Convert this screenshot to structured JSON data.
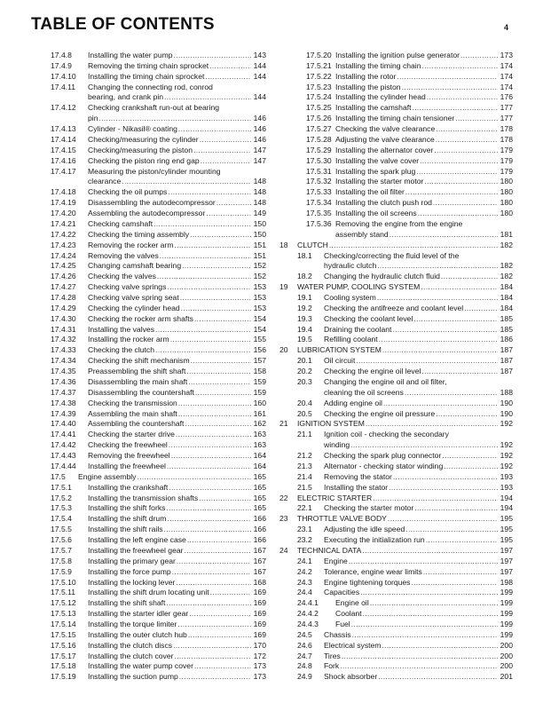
{
  "header": {
    "title": "TABLE OF CONTENTS",
    "page_number": "4"
  },
  "columns": [
    [
      {
        "lv": "a",
        "num": "17.4.8",
        "title": [
          "Installing the water pump"
        ],
        "page": "143"
      },
      {
        "lv": "a",
        "num": "17.4.9",
        "title": [
          "Removing the timing chain sprocket"
        ],
        "page": "144"
      },
      {
        "lv": "a",
        "num": "17.4.10",
        "title": [
          "Installing the timing chain sprocket"
        ],
        "page": "144"
      },
      {
        "lv": "a",
        "num": "17.4.11",
        "title": [
          "Changing the connecting rod, conrod",
          "bearing, and crank pin"
        ],
        "page": "144"
      },
      {
        "lv": "a",
        "num": "17.4.12",
        "title": [
          "Checking crankshaft run-out at bearing",
          "pin"
        ],
        "page": "146"
      },
      {
        "lv": "a",
        "num": "17.4.13",
        "title": [
          "Cylinder - Nikasil® coating"
        ],
        "page": "146"
      },
      {
        "lv": "a",
        "num": "17.4.14",
        "title": [
          "Checking/measuring the cylinder"
        ],
        "page": "146"
      },
      {
        "lv": "a",
        "num": "17.4.15",
        "title": [
          "Checking/measuring the piston"
        ],
        "page": "147"
      },
      {
        "lv": "a",
        "num": "17.4.16",
        "title": [
          "Checking the piston ring end gap"
        ],
        "page": "147"
      },
      {
        "lv": "a",
        "num": "17.4.17",
        "title": [
          "Measuring the piston/cylinder mounting",
          "clearance"
        ],
        "page": "148"
      },
      {
        "lv": "a",
        "num": "17.4.18",
        "title": [
          "Checking the oil pumps"
        ],
        "page": "148"
      },
      {
        "lv": "a",
        "num": "17.4.19",
        "title": [
          "Disassembling the autodecompressor"
        ],
        "page": "148"
      },
      {
        "lv": "a",
        "num": "17.4.20",
        "title": [
          "Assembling the autodecompressor"
        ],
        "page": "149"
      },
      {
        "lv": "a",
        "num": "17.4.21",
        "title": [
          "Checking camshaft"
        ],
        "page": "150"
      },
      {
        "lv": "a",
        "num": "17.4.22",
        "title": [
          "Checking the timing assembly"
        ],
        "page": "150"
      },
      {
        "lv": "a",
        "num": "17.4.23",
        "title": [
          "Removing the rocker arm"
        ],
        "page": "151"
      },
      {
        "lv": "a",
        "num": "17.4.24",
        "title": [
          "Removing the valves"
        ],
        "page": "151"
      },
      {
        "lv": "a",
        "num": "17.4.25",
        "title": [
          "Changing camshaft bearing"
        ],
        "page": "152"
      },
      {
        "lv": "a",
        "num": "17.4.26",
        "title": [
          "Checking the valves"
        ],
        "page": "152"
      },
      {
        "lv": "a",
        "num": "17.4.27",
        "title": [
          "Checking valve springs"
        ],
        "page": "153"
      },
      {
        "lv": "a",
        "num": "17.4.28",
        "title": [
          "Checking valve spring seat"
        ],
        "page": "153"
      },
      {
        "lv": "a",
        "num": "17.4.29",
        "title": [
          "Checking the cylinder head"
        ],
        "page": "153"
      },
      {
        "lv": "a",
        "num": "17.4.30",
        "title": [
          "Checking the rocker arm shafts"
        ],
        "page": "154"
      },
      {
        "lv": "a",
        "num": "17.4.31",
        "title": [
          "Installing the valves"
        ],
        "page": "154"
      },
      {
        "lv": "a",
        "num": "17.4.32",
        "title": [
          "Installing the rocker arm"
        ],
        "page": "155"
      },
      {
        "lv": "a",
        "num": "17.4.33",
        "title": [
          "Checking the clutch"
        ],
        "page": "156"
      },
      {
        "lv": "a",
        "num": "17.4.34",
        "title": [
          "Checking the shift mechanism"
        ],
        "page": "157"
      },
      {
        "lv": "a",
        "num": "17.4.35",
        "title": [
          "Preassembling the shift shaft"
        ],
        "page": "158"
      },
      {
        "lv": "a",
        "num": "17.4.36",
        "title": [
          "Disassembling the main shaft"
        ],
        "page": "159"
      },
      {
        "lv": "a",
        "num": "17.4.37",
        "title": [
          "Disassembling the countershaft"
        ],
        "page": "159"
      },
      {
        "lv": "a",
        "num": "17.4.38",
        "title": [
          "Checking the transmission"
        ],
        "page": "160"
      },
      {
        "lv": "a",
        "num": "17.4.39",
        "title": [
          "Assembling the main shaft"
        ],
        "page": "161"
      },
      {
        "lv": "a",
        "num": "17.4.40",
        "title": [
          "Assembling the countershaft"
        ],
        "page": "162"
      },
      {
        "lv": "a",
        "num": "17.4.41",
        "title": [
          "Checking the starter drive"
        ],
        "page": "163"
      },
      {
        "lv": "a",
        "num": "17.4.42",
        "title": [
          "Checking the freewheel"
        ],
        "page": "163"
      },
      {
        "lv": "a",
        "num": "17.4.43",
        "title": [
          "Removing the freewheel"
        ],
        "page": "164"
      },
      {
        "lv": "a",
        "num": "17.4.44",
        "title": [
          "Installing the freewheel"
        ],
        "page": "164"
      },
      {
        "lv": "s",
        "num": "17.5",
        "title": [
          "Engine assembly"
        ],
        "page": "165"
      },
      {
        "lv": "a",
        "num": "17.5.1",
        "title": [
          "Installing the crankshaft"
        ],
        "page": "165"
      },
      {
        "lv": "a",
        "num": "17.5.2",
        "title": [
          "Installing the transmission shafts"
        ],
        "page": "165"
      },
      {
        "lv": "a",
        "num": "17.5.3",
        "title": [
          "Installing the shift forks"
        ],
        "page": "165"
      },
      {
        "lv": "a",
        "num": "17.5.4",
        "title": [
          "Installing the shift drum"
        ],
        "page": "166"
      },
      {
        "lv": "a",
        "num": "17.5.5",
        "title": [
          "Installing the shift rails"
        ],
        "page": "166"
      },
      {
        "lv": "a",
        "num": "17.5.6",
        "title": [
          "Installing the left engine case"
        ],
        "page": "166"
      },
      {
        "lv": "a",
        "num": "17.5.7",
        "title": [
          "Installing the freewheel gear"
        ],
        "page": "167"
      },
      {
        "lv": "a",
        "num": "17.5.8",
        "title": [
          "Installing the primary gear"
        ],
        "page": "167"
      },
      {
        "lv": "a",
        "num": "17.5.9",
        "title": [
          "Installing the force pump"
        ],
        "page": "167"
      },
      {
        "lv": "a",
        "num": "17.5.10",
        "title": [
          "Installing the locking lever"
        ],
        "page": "168"
      },
      {
        "lv": "a",
        "num": "17.5.11",
        "title": [
          "Installing the shift drum locating unit"
        ],
        "page": "169"
      },
      {
        "lv": "a",
        "num": "17.5.12",
        "title": [
          "Installing the shift shaft"
        ],
        "page": "169"
      },
      {
        "lv": "a",
        "num": "17.5.13",
        "title": [
          "Installing the starter idler gear"
        ],
        "page": "169"
      },
      {
        "lv": "a",
        "num": "17.5.14",
        "title": [
          "Installing the torque limiter"
        ],
        "page": "169"
      },
      {
        "lv": "a",
        "num": "17.5.15",
        "title": [
          "Installing the outer clutch hub"
        ],
        "page": "169"
      },
      {
        "lv": "a",
        "num": "17.5.16",
        "title": [
          "Installing the clutch discs"
        ],
        "page": "170"
      },
      {
        "lv": "a",
        "num": "17.5.17",
        "title": [
          "Installing the clutch cover"
        ],
        "page": "172"
      },
      {
        "lv": "a",
        "num": "17.5.18",
        "title": [
          "Installing the water pump cover"
        ],
        "page": "173"
      },
      {
        "lv": "a",
        "num": "17.5.19",
        "title": [
          "Installing the suction pump"
        ],
        "page": "173"
      }
    ],
    [
      {
        "lv": "c",
        "num": "17.5.20",
        "title": [
          "Installing the ignition pulse generator"
        ],
        "page": "173"
      },
      {
        "lv": "c",
        "num": "17.5.21",
        "title": [
          "Installing the timing chain"
        ],
        "page": "174"
      },
      {
        "lv": "c",
        "num": "17.5.22",
        "title": [
          "Installing the rotor"
        ],
        "page": "174"
      },
      {
        "lv": "c",
        "num": "17.5.23",
        "title": [
          "Installing the piston"
        ],
        "page": "174"
      },
      {
        "lv": "c",
        "num": "17.5.24",
        "title": [
          "Installing the cylinder head"
        ],
        "page": "176"
      },
      {
        "lv": "c",
        "num": "17.5.25",
        "title": [
          "Installing the camshaft"
        ],
        "page": "177"
      },
      {
        "lv": "c",
        "num": "17.5.26",
        "title": [
          "Installing the timing chain tensioner"
        ],
        "page": "177"
      },
      {
        "lv": "c",
        "num": "17.5.27",
        "title": [
          "Checking the valve clearance"
        ],
        "page": "178"
      },
      {
        "lv": "c",
        "num": "17.5.28",
        "title": [
          "Adjusting the valve clearance"
        ],
        "page": "178"
      },
      {
        "lv": "c",
        "num": "17.5.29",
        "title": [
          "Installing the alternator cover"
        ],
        "page": "179"
      },
      {
        "lv": "c",
        "num": "17.5.30",
        "title": [
          "Installing the valve cover"
        ],
        "page": "179"
      },
      {
        "lv": "c",
        "num": "17.5.31",
        "title": [
          "Installing the spark plug"
        ],
        "page": "179"
      },
      {
        "lv": "c",
        "num": "17.5.32",
        "title": [
          "Installing the starter motor"
        ],
        "page": "180"
      },
      {
        "lv": "c",
        "num": "17.5.33",
        "title": [
          "Installing the oil filter"
        ],
        "page": "180"
      },
      {
        "lv": "c",
        "num": "17.5.34",
        "title": [
          "Installing the clutch push rod"
        ],
        "page": "180"
      },
      {
        "lv": "c",
        "num": "17.5.35",
        "title": [
          "Installing the oil screens"
        ],
        "page": "180"
      },
      {
        "lv": "c",
        "num": "17.5.36",
        "title": [
          "Removing the engine from the engine",
          "assembly stand"
        ],
        "page": "181"
      },
      {
        "lv": "h",
        "num": "18",
        "title": [
          "CLUTCH"
        ],
        "page": "182"
      },
      {
        "lv": "b",
        "num": "18.1",
        "title": [
          "Checking/correcting the fluid level of the",
          "hydraulic clutch"
        ],
        "page": "182"
      },
      {
        "lv": "b",
        "num": "18.2",
        "title": [
          "Changing the hydraulic clutch fluid"
        ],
        "page": "182"
      },
      {
        "lv": "h",
        "num": "19",
        "title": [
          "WATER PUMP, COOLING SYSTEM"
        ],
        "page": "184"
      },
      {
        "lv": "b",
        "num": "19.1",
        "title": [
          "Cooling system"
        ],
        "page": "184"
      },
      {
        "lv": "b",
        "num": "19.2",
        "title": [
          "Checking the antifreeze and coolant level"
        ],
        "page": "184"
      },
      {
        "lv": "b",
        "num": "19.3",
        "title": [
          "Checking the coolant level"
        ],
        "page": "185"
      },
      {
        "lv": "b",
        "num": "19.4",
        "title": [
          "Draining the coolant"
        ],
        "page": "185"
      },
      {
        "lv": "b",
        "num": "19.5",
        "title": [
          "Refilling coolant"
        ],
        "page": "186"
      },
      {
        "lv": "h",
        "num": "20",
        "title": [
          "LUBRICATION SYSTEM"
        ],
        "page": "187"
      },
      {
        "lv": "b",
        "num": "20.1",
        "title": [
          "Oil circuit"
        ],
        "page": "187"
      },
      {
        "lv": "b",
        "num": "20.2",
        "title": [
          "Checking the engine oil level"
        ],
        "page": "187"
      },
      {
        "lv": "b",
        "num": "20.3",
        "title": [
          "Changing the engine oil and oil filter,",
          "cleaning the oil screens"
        ],
        "page": "188"
      },
      {
        "lv": "b",
        "num": "20.4",
        "title": [
          "Adding engine oil"
        ],
        "page": "190"
      },
      {
        "lv": "b",
        "num": "20.5",
        "title": [
          "Checking the engine oil pressure"
        ],
        "page": "190"
      },
      {
        "lv": "h",
        "num": "21",
        "title": [
          "IGNITION SYSTEM"
        ],
        "page": "192"
      },
      {
        "lv": "b",
        "num": "21.1",
        "title": [
          "Ignition coil - checking the secondary",
          "winding"
        ],
        "page": "192"
      },
      {
        "lv": "b",
        "num": "21.2",
        "title": [
          "Checking the spark plug connector"
        ],
        "page": "192"
      },
      {
        "lv": "b",
        "num": "21.3",
        "title": [
          "Alternator - checking stator winding"
        ],
        "page": "192"
      },
      {
        "lv": "b",
        "num": "21.4",
        "title": [
          "Removing the stator"
        ],
        "page": "193"
      },
      {
        "lv": "b",
        "num": "21.5",
        "title": [
          "Installing the stator"
        ],
        "page": "193"
      },
      {
        "lv": "h",
        "num": "22",
        "title": [
          "ELECTRIC STARTER"
        ],
        "page": "194"
      },
      {
        "lv": "b",
        "num": "22.1",
        "title": [
          "Checking the starter motor"
        ],
        "page": "194"
      },
      {
        "lv": "h",
        "num": "23",
        "title": [
          "THROTTLE VALVE BODY"
        ],
        "page": "195"
      },
      {
        "lv": "b",
        "num": "23.1",
        "title": [
          "Adjusting the idle speed"
        ],
        "page": "195"
      },
      {
        "lv": "b",
        "num": "23.2",
        "title": [
          "Executing the initialization run"
        ],
        "page": "195"
      },
      {
        "lv": "h",
        "num": "24",
        "title": [
          "TECHNICAL DATA"
        ],
        "page": "197"
      },
      {
        "lv": "b",
        "num": "24.1",
        "title": [
          "Engine"
        ],
        "page": "197"
      },
      {
        "lv": "b",
        "num": "24.2",
        "title": [
          "Tolerance, engine wear limits"
        ],
        "page": "197"
      },
      {
        "lv": "b",
        "num": "24.3",
        "title": [
          "Engine tightening torques"
        ],
        "page": "198"
      },
      {
        "lv": "b",
        "num": "24.4",
        "title": [
          "Capacities"
        ],
        "page": "199"
      },
      {
        "lv": "d",
        "num": "24.4.1",
        "title": [
          "Engine oil"
        ],
        "page": "199"
      },
      {
        "lv": "d",
        "num": "24.4.2",
        "title": [
          "Coolant"
        ],
        "page": "199"
      },
      {
        "lv": "d",
        "num": "24.4.3",
        "title": [
          "Fuel"
        ],
        "page": "199"
      },
      {
        "lv": "b",
        "num": "24.5",
        "title": [
          "Chassis"
        ],
        "page": "199"
      },
      {
        "lv": "b",
        "num": "24.6",
        "title": [
          "Electrical system"
        ],
        "page": "200"
      },
      {
        "lv": "b",
        "num": "24.7",
        "title": [
          "Tires"
        ],
        "page": "200"
      },
      {
        "lv": "b",
        "num": "24.8",
        "title": [
          "Fork"
        ],
        "page": "200"
      },
      {
        "lv": "b",
        "num": "24.9",
        "title": [
          "Shock absorber"
        ],
        "page": "201"
      }
    ]
  ]
}
